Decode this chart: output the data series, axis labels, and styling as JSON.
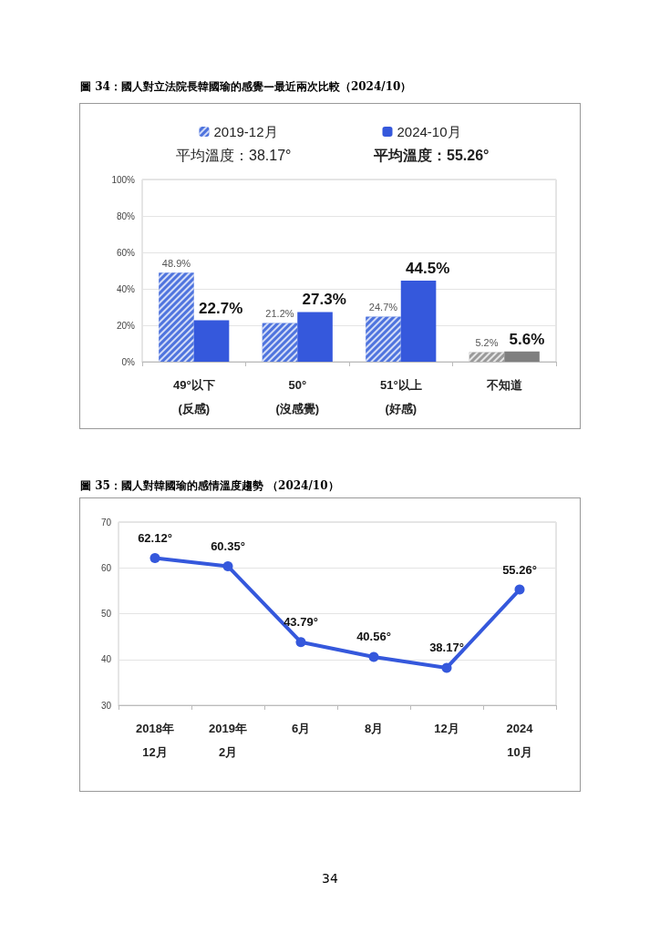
{
  "chart_data": [
    {
      "type": "bar",
      "title": "圖 34：國人對立法院長韓國瑜的感覺—最近兩次比較（2024/10）",
      "categories": [
        "49°以下\n(反感)",
        "50°\n(沒感覺)",
        "51°以上\n(好感)",
        "不知道"
      ],
      "series": [
        {
          "name": "2019-12月",
          "color": "#4f74de",
          "colors": [
            "#4f74de",
            "#4f74de",
            "#4f74de",
            "#9a9a9a"
          ],
          "values": [
            48.9,
            21.2,
            24.7,
            5.2
          ],
          "value_labels": [
            "48.9%",
            "21.2%",
            "24.7%",
            "5.2%"
          ]
        },
        {
          "name": "2024-10月",
          "color": "#3558dc",
          "colors": [
            "#3558dc",
            "#3558dc",
            "#3558dc",
            "#7f7f7f"
          ],
          "values": [
            22.7,
            27.3,
            44.5,
            5.6
          ],
          "value_labels": [
            "22.7%",
            "27.3%",
            "44.5%",
            "5.6%"
          ]
        }
      ],
      "annotations": [
        "平均溫度：38.17°",
        "平均溫度：55.26°"
      ],
      "ylim": [
        0,
        100
      ],
      "yticks": [
        {
          "value": 0,
          "label": "0%"
        },
        {
          "value": 20,
          "label": "20%"
        },
        {
          "value": 40,
          "label": "40%"
        },
        {
          "value": 60,
          "label": "60%"
        },
        {
          "value": 80,
          "label": "80%"
        },
        {
          "value": 100,
          "label": "100%"
        }
      ],
      "grid": "y",
      "legend": "top"
    },
    {
      "type": "line",
      "title": "圖 35：國人對韓國瑜的感情溫度趨勢 （2024/10）",
      "categories": [
        "2018年\n12月",
        "2019年\n2月",
        "6月",
        "8月",
        "12月",
        "2024\n10月"
      ],
      "series": [
        {
          "color": "#3558dc",
          "values": [
            62.12,
            60.35,
            43.79,
            40.56,
            38.17,
            55.26
          ],
          "value_labels": [
            "62.12°",
            "60.35°",
            "43.79°",
            "40.56°",
            "38.17°",
            "55.26°"
          ]
        }
      ],
      "annotations": [
        "34"
      ],
      "ylim": [
        30,
        70
      ],
      "yticks": [
        30,
        40,
        50,
        60,
        70
      ],
      "grid": "y",
      "marker": "circle",
      "line_style": "solid"
    }
  ]
}
